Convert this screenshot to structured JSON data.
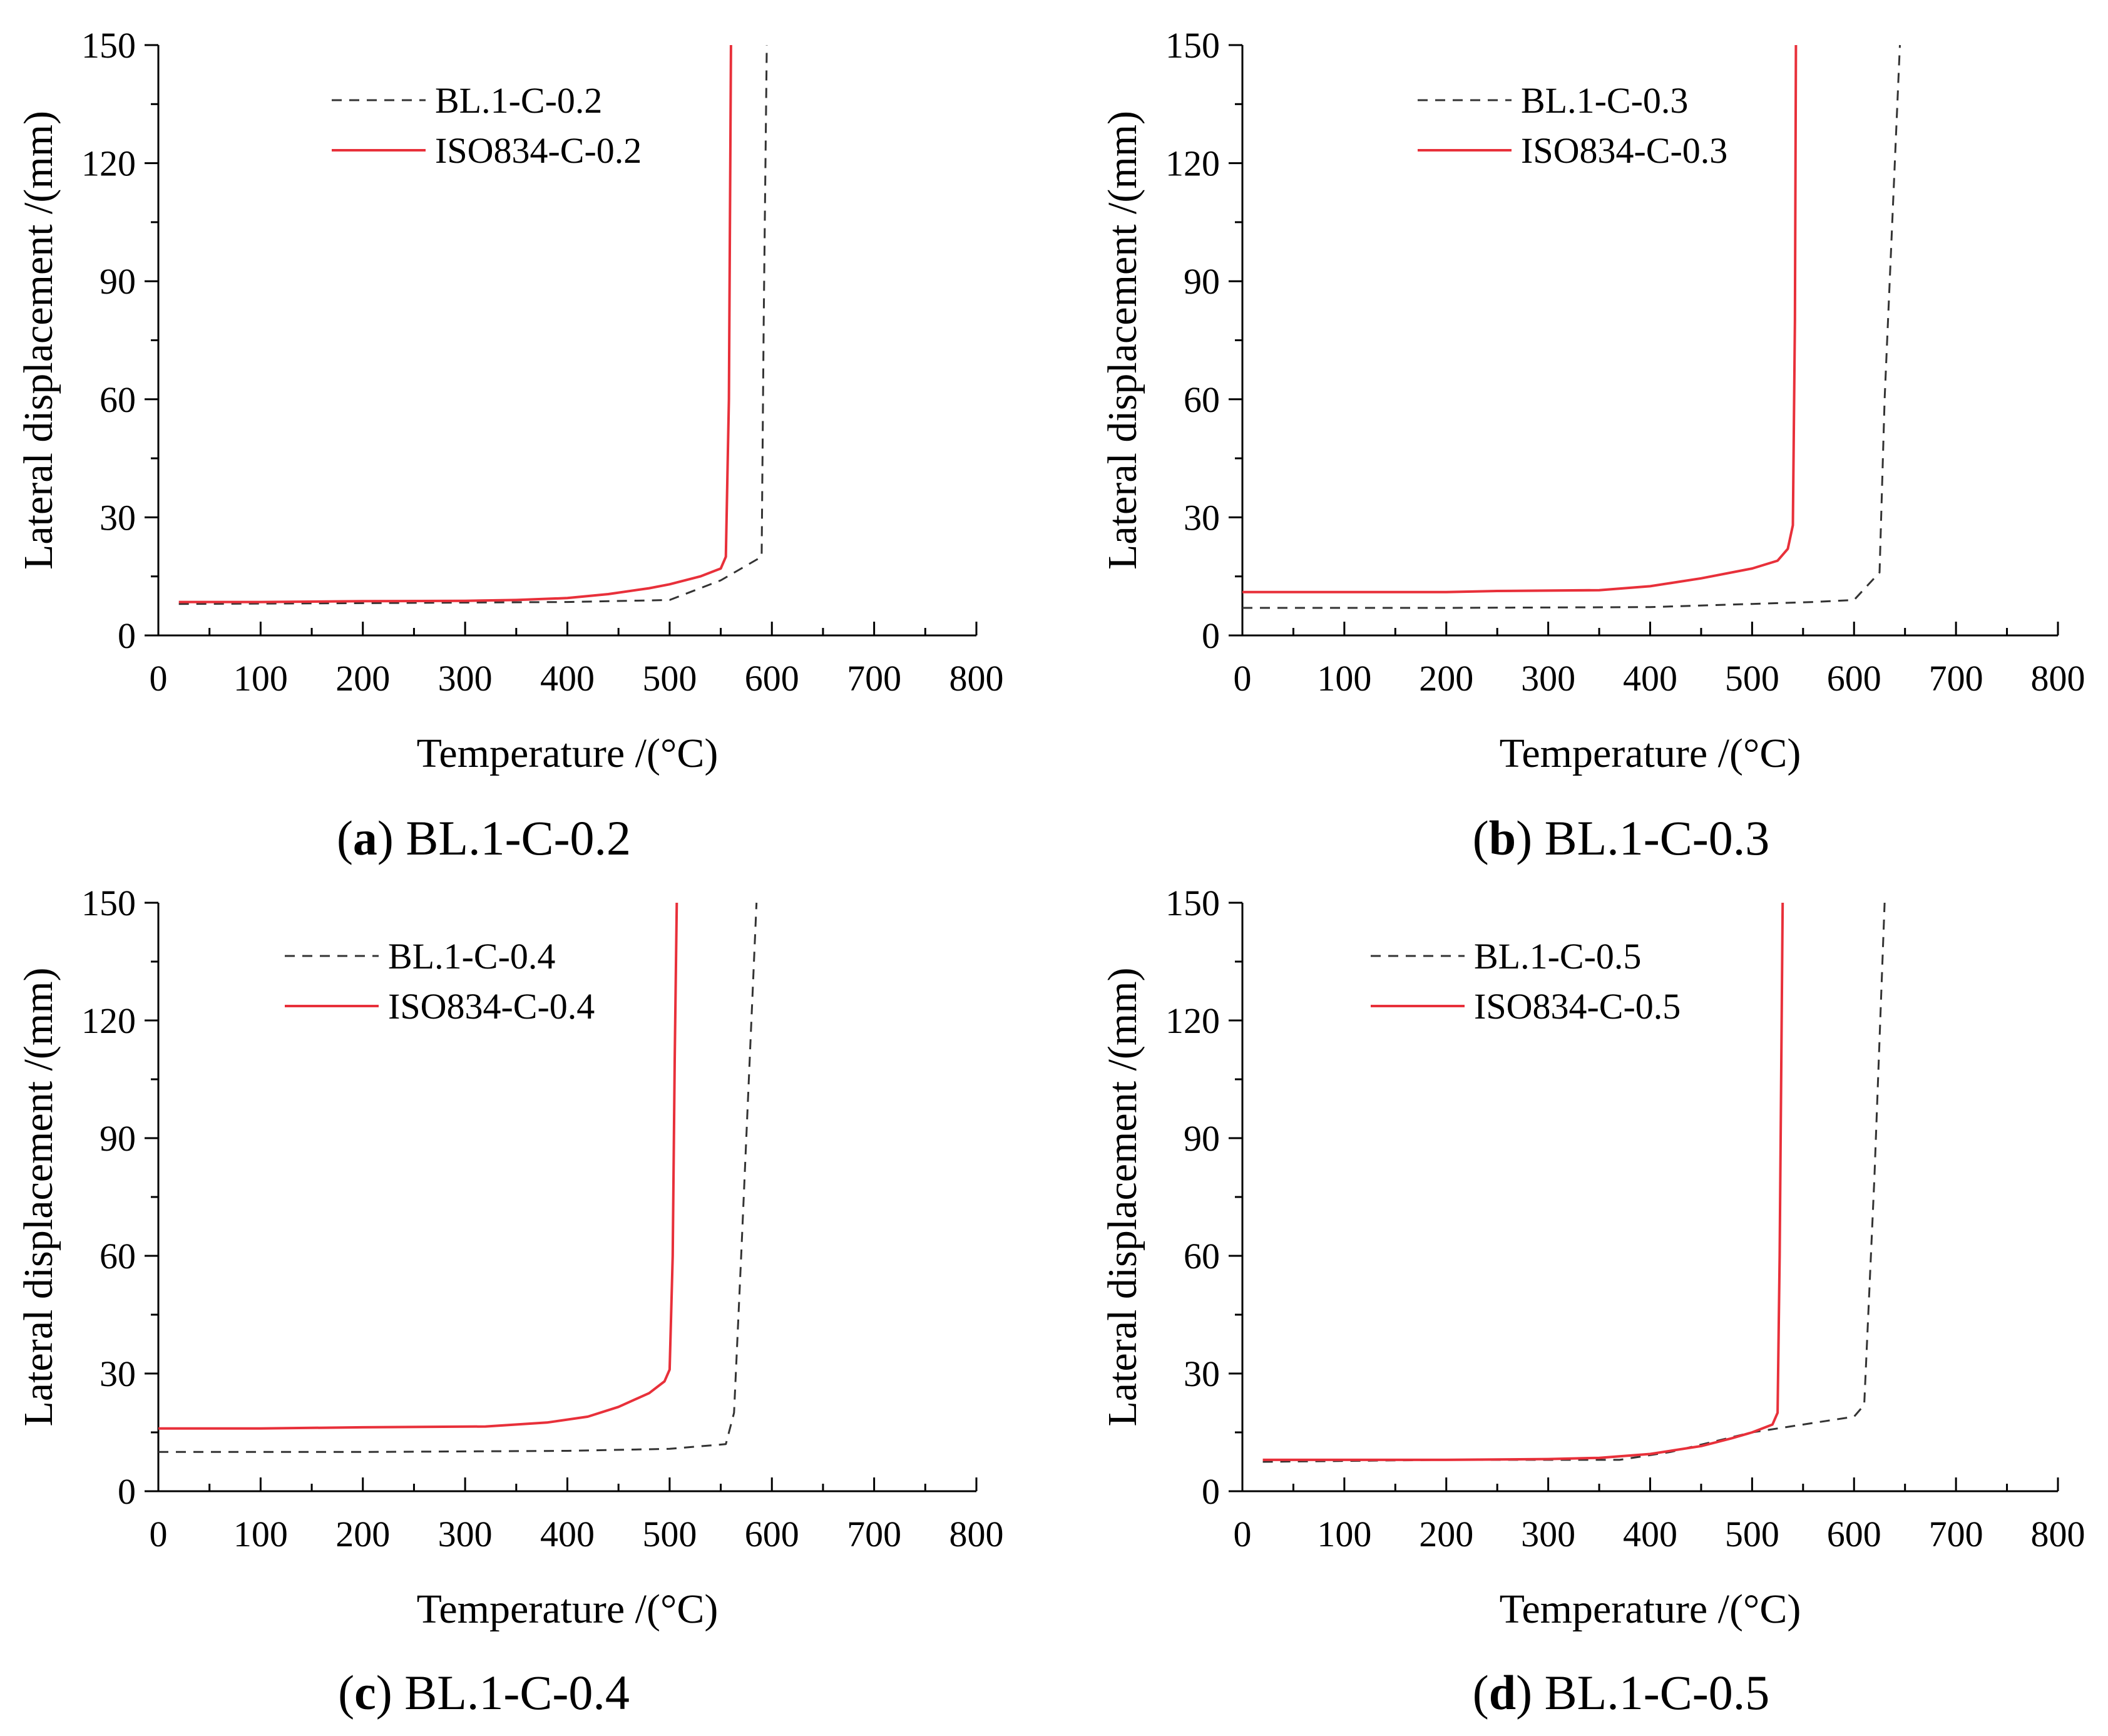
{
  "figure": {
    "panels": [
      {
        "caption_letter": "a",
        "caption_text": "BL.1-C-0.2"
      },
      {
        "caption_letter": "b",
        "caption_text": "BL.1-C-0.3"
      },
      {
        "caption_letter": "c",
        "caption_text": "BL.1-C-0.4"
      },
      {
        "caption_letter": "d",
        "caption_text": "BL.1-C-0.5"
      }
    ]
  },
  "chart_data": [
    {
      "type": "line",
      "xlabel": "Temperature /(°C)",
      "ylabel": "Lateral displacement /(mm)",
      "xlim": [
        0,
        800
      ],
      "ylim": [
        0,
        150
      ],
      "xticks": [
        0,
        100,
        200,
        300,
        400,
        500,
        600,
        700,
        800
      ],
      "yticks": [
        0,
        30,
        60,
        90,
        120,
        150
      ],
      "legend_position": "top-left",
      "series": [
        {
          "name": "BL.1-C-0.2",
          "style": "dashed",
          "color": "#333333",
          "x": [
            20,
            200,
            400,
            500,
            550,
            590,
            592,
            595
          ],
          "y": [
            8,
            8.2,
            8.5,
            9,
            14,
            20,
            80,
            150
          ]
        },
        {
          "name": "ISO834-C-0.2",
          "style": "solid",
          "color": "#e8303a",
          "x": [
            20,
            100,
            200,
            300,
            350,
            400,
            440,
            480,
            500,
            530,
            550,
            555,
            558,
            560
          ],
          "y": [
            8.5,
            8.5,
            8.7,
            8.8,
            9,
            9.5,
            10.5,
            12,
            13,
            15,
            17,
            20,
            60,
            150
          ]
        }
      ]
    },
    {
      "type": "line",
      "xlabel": "Temperature /(°C)",
      "ylabel": "Lateral displacement /(mm)",
      "xlim": [
        0,
        800
      ],
      "ylim": [
        0,
        150
      ],
      "xticks": [
        0,
        100,
        200,
        300,
        400,
        500,
        600,
        700,
        800
      ],
      "yticks": [
        0,
        30,
        60,
        90,
        120,
        150
      ],
      "legend_position": "top-center",
      "series": [
        {
          "name": "BL.1-C-0.3",
          "style": "dashed",
          "color": "#333333",
          "x": [
            0,
            200,
            400,
            500,
            560,
            600,
            625,
            630,
            645
          ],
          "y": [
            7,
            7,
            7.2,
            8,
            8.5,
            9,
            16,
            60,
            150
          ]
        },
        {
          "name": "ISO834-C-0.3",
          "style": "solid",
          "color": "#e8303a",
          "x": [
            0,
            100,
            200,
            250,
            350,
            400,
            450,
            500,
            525,
            535,
            540,
            542,
            543
          ],
          "y": [
            11,
            11,
            11,
            11.3,
            11.5,
            12.5,
            14.5,
            17,
            19,
            22,
            28,
            80,
            150
          ]
        }
      ]
    },
    {
      "type": "line",
      "xlabel": "Temperature /(°C)",
      "ylabel": "Lateral displacement /(mm)",
      "xlim": [
        0,
        800
      ],
      "ylim": [
        0,
        150
      ],
      "xticks": [
        0,
        100,
        200,
        300,
        400,
        500,
        600,
        700,
        800
      ],
      "yticks": [
        0,
        30,
        60,
        90,
        120,
        150
      ],
      "legend_position": "top-left",
      "series": [
        {
          "name": "BL.1-C-0.4",
          "style": "dashed",
          "color": "#333333",
          "x": [
            0,
            200,
            400,
            500,
            555,
            563,
            570,
            585
          ],
          "y": [
            10,
            10,
            10.3,
            10.8,
            12,
            20,
            60,
            150
          ]
        },
        {
          "name": "ISO834-C-0.4",
          "style": "solid",
          "color": "#e8303a",
          "x": [
            0,
            100,
            200,
            320,
            380,
            420,
            450,
            480,
            495,
            500,
            503,
            505,
            507
          ],
          "y": [
            16,
            16,
            16.3,
            16.5,
            17.5,
            19,
            21.5,
            25,
            28,
            31,
            60,
            110,
            150
          ]
        }
      ]
    },
    {
      "type": "line",
      "xlabel": "Temperature /(°C)",
      "ylabel": "Lateral displacement /(mm)",
      "xlim": [
        0,
        800
      ],
      "ylim": [
        0,
        150
      ],
      "xticks": [
        0,
        100,
        200,
        300,
        400,
        500,
        600,
        700,
        800
      ],
      "yticks": [
        0,
        30,
        60,
        90,
        120,
        150
      ],
      "legend_position": "top-center",
      "series": [
        {
          "name": "BL.1-C-0.5",
          "style": "dashed",
          "color": "#333333",
          "x": [
            20,
            200,
            370,
            420,
            500,
            600,
            610,
            620,
            630
          ],
          "y": [
            7.5,
            8,
            8,
            10,
            15,
            19,
            22,
            80,
            150
          ]
        },
        {
          "name": "ISO834-C-0.5",
          "style": "solid",
          "color": "#e8303a",
          "x": [
            20,
            100,
            200,
            300,
            350,
            400,
            450,
            480,
            500,
            520,
            525,
            527,
            530
          ],
          "y": [
            8,
            8,
            8,
            8.2,
            8.5,
            9.5,
            11.5,
            13.5,
            15,
            17,
            20,
            60,
            150
          ]
        }
      ]
    }
  ]
}
